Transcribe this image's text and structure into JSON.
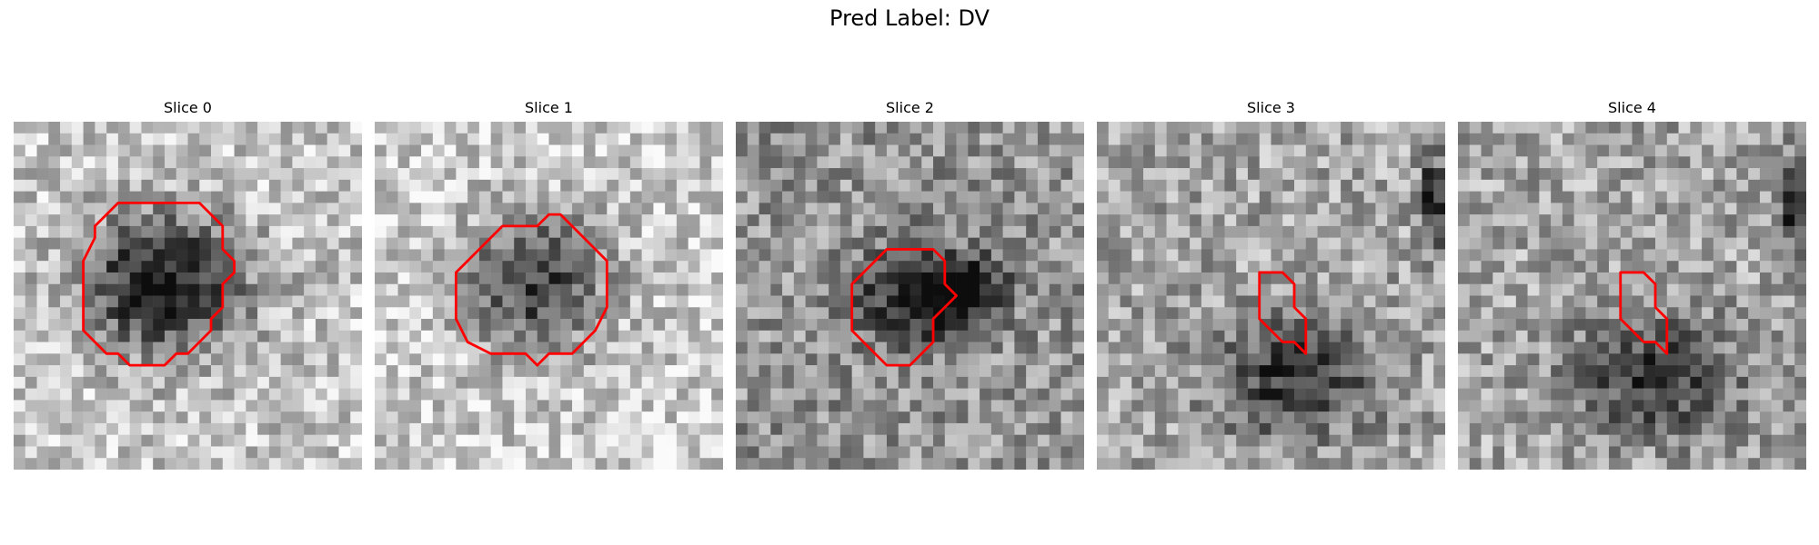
{
  "figure": {
    "title": "Pred Label: DV"
  },
  "panels": [
    {
      "title": "Slice 0",
      "contour": [
        [
          12,
          7
        ],
        [
          16,
          7
        ],
        [
          18,
          9
        ],
        [
          18,
          11
        ],
        [
          19,
          12
        ],
        [
          19,
          13
        ],
        [
          18,
          14
        ],
        [
          18,
          16
        ],
        [
          17,
          17
        ],
        [
          17,
          18
        ],
        [
          16,
          19
        ],
        [
          15,
          20
        ],
        [
          14,
          20
        ],
        [
          13,
          21
        ],
        [
          10,
          21
        ],
        [
          9,
          20
        ],
        [
          8,
          20
        ],
        [
          7,
          19
        ],
        [
          6,
          18
        ],
        [
          6,
          12
        ],
        [
          7,
          10
        ],
        [
          7,
          9
        ],
        [
          8,
          8
        ],
        [
          9,
          7
        ],
        [
          10,
          7
        ],
        [
          11,
          7
        ]
      ],
      "seed": 11,
      "blobs": [
        {
          "cx": 13,
          "cy": 14,
          "rx": 7,
          "ry": 6,
          "s": 0.72
        }
      ],
      "base": 0.78
    },
    {
      "title": "Slice 1",
      "contour": [
        [
          17,
          9
        ],
        [
          18,
          10
        ],
        [
          19,
          11
        ],
        [
          20,
          12
        ],
        [
          20,
          16
        ],
        [
          19,
          18
        ],
        [
          18,
          19
        ],
        [
          17,
          20
        ],
        [
          15,
          20
        ],
        [
          14,
          21
        ],
        [
          13,
          20
        ],
        [
          10,
          20
        ],
        [
          8,
          19
        ],
        [
          7,
          17
        ],
        [
          7,
          13
        ],
        [
          8,
          12
        ],
        [
          9,
          11
        ],
        [
          10,
          10
        ],
        [
          11,
          9
        ],
        [
          14,
          9
        ],
        [
          15,
          8
        ],
        [
          16,
          8
        ]
      ],
      "seed": 23,
      "blobs": [
        {
          "cx": 14,
          "cy": 14,
          "rx": 6,
          "ry": 6,
          "s": 0.55
        }
      ],
      "base": 0.8
    },
    {
      "title": "Slice 2",
      "contour": [
        [
          15,
          11
        ],
        [
          17,
          11
        ],
        [
          18,
          12
        ],
        [
          18,
          14
        ],
        [
          19,
          15
        ],
        [
          18,
          16
        ],
        [
          17,
          17
        ],
        [
          17,
          19
        ],
        [
          16,
          20
        ],
        [
          15,
          21
        ],
        [
          13,
          21
        ],
        [
          12,
          20
        ],
        [
          11,
          19
        ],
        [
          10,
          18
        ],
        [
          10,
          14
        ],
        [
          11,
          13
        ],
        [
          12,
          12
        ],
        [
          13,
          11
        ]
      ],
      "seed": 37,
      "blobs": [
        {
          "cx": 16,
          "cy": 15,
          "rx": 5,
          "ry": 4,
          "s": 0.55
        },
        {
          "cx": 20,
          "cy": 14,
          "rx": 3,
          "ry": 2,
          "s": 0.5
        }
      ],
      "base": 0.58
    },
    {
      "title": "Slice 3",
      "contour": [
        [
          14,
          13
        ],
        [
          16,
          13
        ],
        [
          17,
          14
        ],
        [
          17,
          16
        ],
        [
          18,
          17
        ],
        [
          18,
          20
        ],
        [
          17,
          19
        ],
        [
          16,
          19
        ],
        [
          15,
          18
        ],
        [
          14,
          17
        ],
        [
          14,
          14
        ]
      ],
      "seed": 51,
      "blobs": [
        {
          "cx": 17,
          "cy": 22,
          "rx": 7,
          "ry": 5,
          "s": 0.45
        },
        {
          "cx": 29,
          "cy": 7,
          "rx": 1,
          "ry": 4,
          "s": 0.6
        }
      ],
      "base": 0.65
    },
    {
      "title": "Slice 4",
      "contour": [
        [
          14,
          13
        ],
        [
          16,
          13
        ],
        [
          17,
          14
        ],
        [
          17,
          16
        ],
        [
          18,
          17
        ],
        [
          18,
          20
        ],
        [
          17,
          19
        ],
        [
          16,
          19
        ],
        [
          15,
          18
        ],
        [
          14,
          17
        ],
        [
          14,
          14
        ]
      ],
      "seed": 59,
      "blobs": [
        {
          "cx": 17,
          "cy": 22,
          "rx": 7,
          "ry": 5,
          "s": 0.45
        },
        {
          "cx": 29,
          "cy": 7,
          "rx": 1,
          "ry": 4,
          "s": 0.6
        }
      ],
      "base": 0.65
    }
  ],
  "colors": {
    "contour": "#ff0000"
  }
}
